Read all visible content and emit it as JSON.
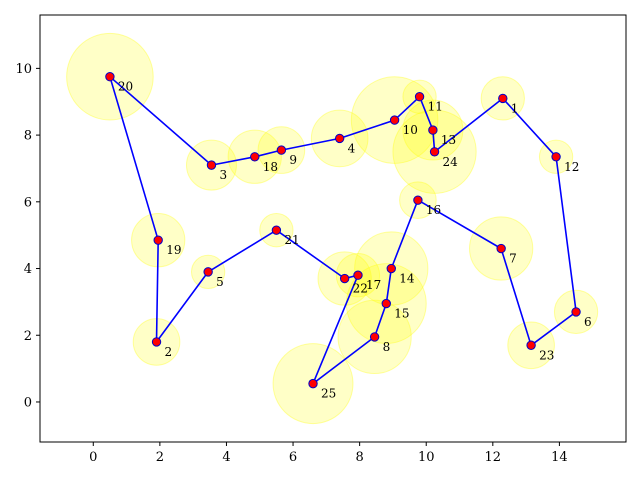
{
  "chart_data": {
    "type": "scatter",
    "title": "",
    "xlabel": "",
    "ylabel": "",
    "xlim": [
      -1.6,
      16.0
    ],
    "ylim": [
      -1.2,
      11.6
    ],
    "xticks": [
      0,
      2,
      4,
      6,
      8,
      10,
      12,
      14
    ],
    "yticks": [
      0,
      2,
      4,
      6,
      8,
      10
    ],
    "grid": false,
    "legend": "none",
    "colors": {
      "circle_fill": "#ffff00",
      "circle_alpha": 0.22,
      "point": "#ff0000",
      "point_edge": "#0000cc",
      "route": "#0000ff"
    },
    "points": [
      {
        "id": "1",
        "x": 12.3,
        "y": 9.1,
        "r": 0.65
      },
      {
        "id": "2",
        "x": 1.9,
        "y": 1.8,
        "r": 0.7
      },
      {
        "id": "3",
        "x": 3.55,
        "y": 7.1,
        "r": 0.75
      },
      {
        "id": "4",
        "x": 7.4,
        "y": 7.9,
        "r": 0.85
      },
      {
        "id": "5",
        "x": 3.45,
        "y": 3.9,
        "r": 0.5
      },
      {
        "id": "6",
        "x": 14.5,
        "y": 2.7,
        "r": 0.65
      },
      {
        "id": "7",
        "x": 12.25,
        "y": 4.6,
        "r": 0.95
      },
      {
        "id": "8",
        "x": 8.45,
        "y": 1.95,
        "r": 1.1
      },
      {
        "id": "9",
        "x": 5.65,
        "y": 7.55,
        "r": 0.7
      },
      {
        "id": "10",
        "x": 9.05,
        "y": 8.45,
        "r": 1.3
      },
      {
        "id": "11",
        "x": 9.8,
        "y": 9.15,
        "r": 0.5
      },
      {
        "id": "12",
        "x": 13.9,
        "y": 7.35,
        "r": 0.5
      },
      {
        "id": "13",
        "x": 10.2,
        "y": 8.15,
        "r": 0.9
      },
      {
        "id": "14",
        "x": 8.95,
        "y": 4.0,
        "r": 1.1
      },
      {
        "id": "15",
        "x": 8.8,
        "y": 2.95,
        "r": 1.2
      },
      {
        "id": "16",
        "x": 9.75,
        "y": 6.05,
        "r": 0.55
      },
      {
        "id": "17",
        "x": 7.95,
        "y": 3.8,
        "r": 0.65
      },
      {
        "id": "18",
        "x": 4.85,
        "y": 7.35,
        "r": 0.8
      },
      {
        "id": "19",
        "x": 1.95,
        "y": 4.85,
        "r": 0.8
      },
      {
        "id": "20",
        "x": 0.5,
        "y": 9.75,
        "r": 1.3
      },
      {
        "id": "21",
        "x": 5.5,
        "y": 5.15,
        "r": 0.5
      },
      {
        "id": "22",
        "x": 7.55,
        "y": 3.7,
        "r": 0.8
      },
      {
        "id": "23",
        "x": 13.15,
        "y": 1.7,
        "r": 0.7
      },
      {
        "id": "24",
        "x": 10.25,
        "y": 7.5,
        "r": 1.25
      },
      {
        "id": "25",
        "x": 6.6,
        "y": 0.55,
        "r": 1.2
      }
    ],
    "route": [
      "20",
      "3",
      "18",
      "9",
      "4",
      "10",
      "11",
      "13",
      "24",
      "1",
      "12",
      "6",
      "23",
      "7",
      "16",
      "14",
      "15",
      "8",
      "25",
      "17",
      "22",
      "21",
      "5",
      "2",
      "19",
      "20"
    ]
  }
}
